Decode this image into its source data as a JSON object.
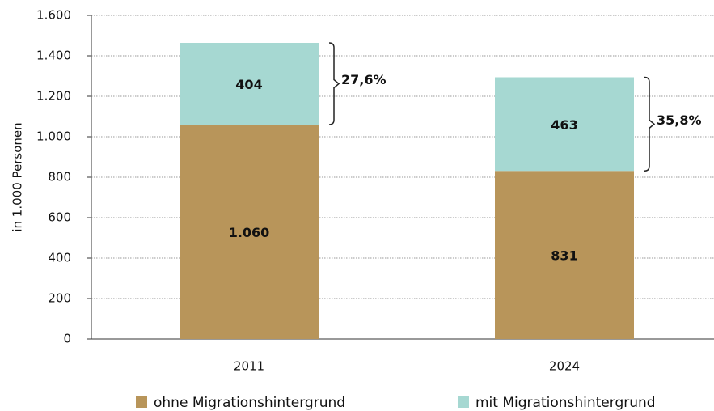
{
  "chart_data": {
    "type": "stacked_bar",
    "y_label": "in 1.000 Personen",
    "categories": [
      "2011",
      "2024"
    ],
    "series": [
      {
        "name": "ohne Migrationshintergrund",
        "color": "#b8955a",
        "values": [
          1060,
          831
        ],
        "value_labels": [
          "1.060",
          "831"
        ]
      },
      {
        "name": "mit Migrationshintergrund",
        "color": "#a6d8d2",
        "values": [
          404,
          463
        ]
      }
    ],
    "share_labels": [
      "27,6%",
      "35,8%"
    ],
    "ylim": [
      0,
      1600
    ],
    "yticks": [
      0,
      200,
      400,
      600,
      800,
      {
        "value": 1000,
        "label": "1.000"
      },
      {
        "value": 1200,
        "label": "1.200"
      },
      {
        "value": 1400,
        "label": "1.400"
      },
      {
        "value": 1600,
        "label": "1.600"
      }
    ],
    "grid": true
  }
}
